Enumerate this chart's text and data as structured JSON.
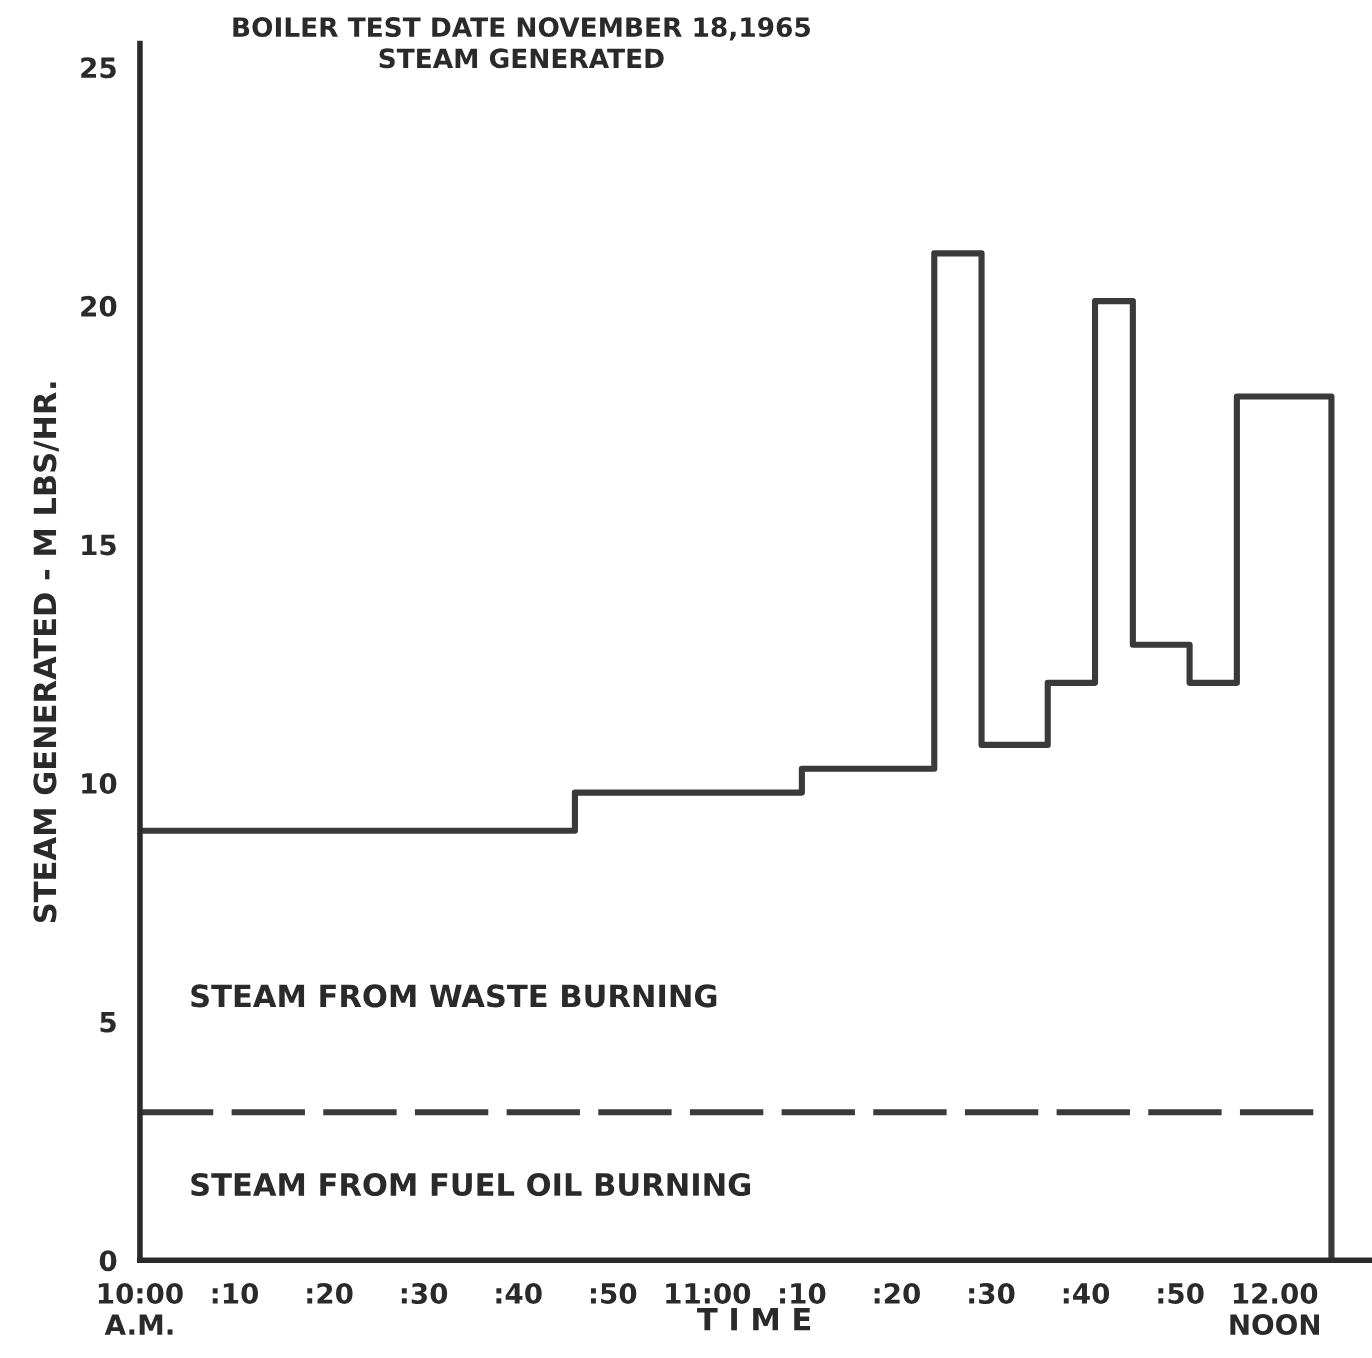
{
  "chart_data": {
    "type": "step",
    "title": "BOILER TEST DATE NOVEMBER 18,1965",
    "subtitle": "STEAM GENERATED",
    "xlabel": "T I M E",
    "ylabel": "STEAM GENERATED - M LBS/HR.",
    "series": [
      {
        "color": "#3a3a3a",
        "line_style": "solid",
        "x": [
          "1965-11-18T10:00",
          "1965-11-18T10:46",
          "1965-11-18T11:10",
          "1965-11-18T11:24",
          "1965-11-18T11:29",
          "1965-11-18T11:36",
          "1965-11-18T11:41",
          "1965-11-18T11:45",
          "1965-11-18T11:51",
          "1965-11-18T11:56",
          "1965-11-18T12:06"
        ],
        "values": [
          9.0,
          9.8,
          10.3,
          21.1,
          10.8,
          12.1,
          20.1,
          12.9,
          12.1,
          18.1,
          0
        ]
      },
      {
        "type": "line",
        "color": "#3a3a3a",
        "line_style": "dashed",
        "x": [
          "1965-11-18T10:00",
          "1965-11-18T12:06"
        ],
        "values": [
          3.1,
          3.1
        ]
      }
    ],
    "annotations": [
      "STEAM FROM WASTE BURNING",
      "STEAM FROM FUEL OIL BURNING"
    ],
    "xlim": [
      "1965-11-18T10:00",
      "1965-11-18T12:10"
    ],
    "ylim": [
      0,
      25.5
    ],
    "xticks": [
      {
        "value": "1965-11-18T10:00",
        "label": "10:00\nA.M."
      },
      {
        "value": "1965-11-18T10:10",
        "label": ":10"
      },
      {
        "value": "1965-11-18T10:20",
        "label": ":20"
      },
      {
        "value": "1965-11-18T10:30",
        "label": ":30"
      },
      {
        "value": "1965-11-18T10:40",
        "label": ":40"
      },
      {
        "value": "1965-11-18T10:50",
        "label": ":50"
      },
      {
        "value": "1965-11-18T11:00",
        "label": "11:00"
      },
      {
        "value": "1965-11-18T11:10",
        "label": ":10"
      },
      {
        "value": "1965-11-18T11:20",
        "label": ":20"
      },
      {
        "value": "1965-11-18T11:30",
        "label": ":30"
      },
      {
        "value": "1965-11-18T11:40",
        "label": ":40"
      },
      {
        "value": "1965-11-18T11:50",
        "label": ":50"
      },
      {
        "value": "1965-11-18T12:00",
        "label": "12.00\nNOON"
      }
    ],
    "yticks": [
      0,
      5,
      10,
      15,
      20,
      25
    ],
    "grid": false,
    "legend": false
  }
}
